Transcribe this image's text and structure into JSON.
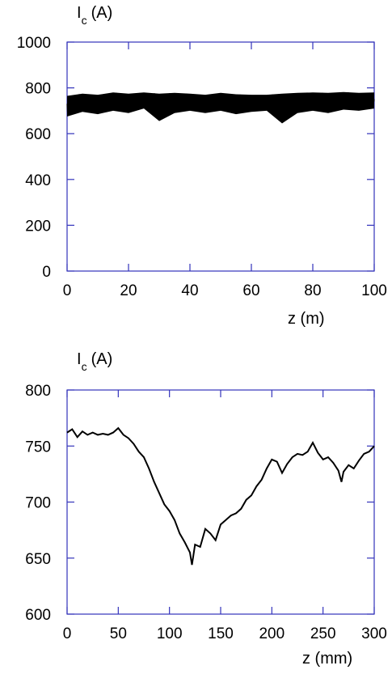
{
  "colors": {
    "frame": "#3333bb",
    "line": "#000000",
    "text": "#000000",
    "background": "#ffffff"
  },
  "chart_data": [
    {
      "type": "line",
      "ylabel": {
        "main": "I",
        "sub": "c",
        "unit": "(A)"
      },
      "xlabel": "z (m)",
      "xlim": [
        0,
        100
      ],
      "ylim": [
        0,
        1000
      ],
      "xticks": [
        "0",
        "20",
        "40",
        "60",
        "80",
        "100"
      ],
      "yticks": [
        "0",
        "200",
        "400",
        "600",
        "800",
        "1000"
      ],
      "grid": false,
      "series": [
        {
          "x": [
            0,
            5,
            10,
            15,
            20,
            25,
            30,
            35,
            40,
            45,
            50,
            55,
            60,
            65,
            70,
            75,
            80,
            85,
            90,
            95,
            100
          ],
          "y": [
            730,
            735,
            738,
            742,
            740,
            745,
            735,
            740,
            738,
            735,
            740,
            735,
            732,
            735,
            738,
            740,
            742,
            740,
            745,
            742,
            745
          ],
          "y_low_envelope": [
            675,
            695,
            685,
            700,
            690,
            710,
            655,
            690,
            700,
            690,
            700,
            685,
            695,
            700,
            645,
            690,
            700,
            690,
            705,
            700,
            710
          ],
          "y_high_envelope": [
            765,
            775,
            770,
            780,
            775,
            780,
            775,
            778,
            775,
            770,
            778,
            772,
            770,
            770,
            775,
            778,
            780,
            778,
            782,
            778,
            780
          ]
        }
      ]
    },
    {
      "type": "line",
      "ylabel": {
        "main": "I",
        "sub": "c",
        "unit": "(A)"
      },
      "xlabel": "z (mm)",
      "xlim": [
        0,
        300
      ],
      "ylim": [
        600,
        800
      ],
      "xticks": [
        "0",
        "50",
        "100",
        "150",
        "200",
        "250",
        "300"
      ],
      "yticks": [
        "600",
        "650",
        "700",
        "750",
        "800"
      ],
      "grid": false,
      "series": [
        {
          "x": [
            0,
            5,
            10,
            15,
            20,
            25,
            30,
            35,
            40,
            45,
            50,
            55,
            60,
            65,
            70,
            75,
            80,
            85,
            90,
            95,
            100,
            105,
            110,
            115,
            120,
            122,
            125,
            130,
            135,
            140,
            145,
            150,
            155,
            160,
            165,
            170,
            175,
            180,
            185,
            190,
            195,
            200,
            205,
            210,
            215,
            220,
            225,
            230,
            235,
            240,
            245,
            250,
            255,
            260,
            265,
            268,
            270,
            275,
            280,
            285,
            290,
            295,
            300
          ],
          "y": [
            762,
            765,
            758,
            763,
            760,
            762,
            760,
            761,
            760,
            762,
            766,
            760,
            757,
            752,
            745,
            740,
            730,
            718,
            708,
            698,
            692,
            684,
            672,
            664,
            655,
            644,
            662,
            660,
            676,
            672,
            666,
            680,
            684,
            688,
            690,
            694,
            702,
            706,
            714,
            720,
            730,
            738,
            736,
            726,
            734,
            740,
            743,
            742,
            745,
            753,
            744,
            738,
            740,
            735,
            728,
            718,
            727,
            733,
            730,
            737,
            743,
            745,
            750
          ]
        }
      ]
    }
  ]
}
